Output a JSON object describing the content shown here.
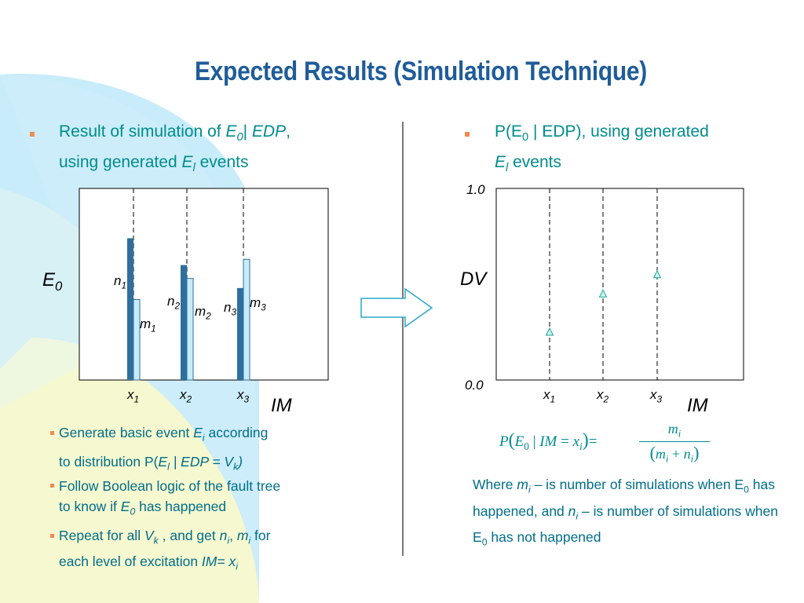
{
  "title": "Expected Results (Simulation Technique)",
  "left_header": {
    "part1": "Result of simulation of ",
    "e0": "E",
    "e0_sub": "0",
    "sep": "| ",
    "edp": "EDP",
    "comma": ",",
    "line2_a": "using generated ",
    "el": "E",
    "el_sub": "l",
    "line2_b": " events"
  },
  "right_header": {
    "line1": "P(E",
    "sub0": "0",
    "line1_b": " | EDP), using generated",
    "el": "E",
    "el_sub": "l",
    "line2_b": " events"
  },
  "left_chart": {
    "ylabel": "E",
    "ylabel_sub": "0",
    "xlabel": "IM",
    "ticks": [
      {
        "base": "x",
        "sub": "1"
      },
      {
        "base": "x",
        "sub": "2"
      },
      {
        "base": "x",
        "sub": "3"
      }
    ],
    "bar_labels": [
      {
        "n": "n",
        "n_sub": "1",
        "m": "m",
        "m_sub": "1"
      },
      {
        "n": "n",
        "n_sub": "2",
        "m": "m",
        "m_sub": "2"
      },
      {
        "n": "n",
        "n_sub": "3",
        "m": "m",
        "m_sub": "3"
      }
    ]
  },
  "right_chart": {
    "ylabel": "DV",
    "xlabel": "IM",
    "y_top": "1.0",
    "y_bottom": "0.0",
    "ticks": [
      {
        "base": "x",
        "sub": "1"
      },
      {
        "base": "x",
        "sub": "2"
      },
      {
        "base": "x",
        "sub": "3"
      }
    ]
  },
  "chart_data": [
    {
      "type": "bar",
      "categories": [
        "x1",
        "x2",
        "x3"
      ],
      "series": [
        {
          "name": "n",
          "values": [
            0.74,
            0.6,
            0.48
          ]
        },
        {
          "name": "m",
          "values": [
            0.42,
            0.53,
            0.63
          ]
        }
      ],
      "xlabel": "IM",
      "ylabel": "E0"
    },
    {
      "type": "scatter",
      "x": [
        "x1",
        "x2",
        "x3"
      ],
      "y": [
        0.25,
        0.45,
        0.55
      ],
      "xlabel": "IM",
      "ylabel": "DV",
      "ylim": [
        0.0,
        1.0
      ]
    }
  ],
  "sub_bullets": [
    {
      "a": "Generate basic event ",
      "i1": "E",
      "i1_sub": "i",
      "b": " according",
      "c": "to distribution P(",
      "i2": "E",
      "i2_sub": "l",
      "d": " | EDP = V",
      "d_sub": "k",
      "e": ")"
    },
    {
      "a": "Follow Boolean logic of the fault tree",
      "b": "to know if ",
      "i1": "E",
      "i1_sub": "0",
      "c": " has happened"
    },
    {
      "a": "Repeat for all ",
      "i1": "V",
      "i1_sub": "k",
      "b": " , and get ",
      "i2": "n",
      "i2_sub": "i",
      "c": ", ",
      "i3": "m",
      "i3_sub": "i",
      "d": " for",
      "e": "each level of excitation ",
      "f": "IM= x",
      "f_sub": "i"
    }
  ],
  "formula": {
    "lhs_p": "P",
    "lhs_e": "E",
    "lhs_e_sub": "0",
    "lhs_bar": " | ",
    "lhs_im": "IM",
    "lhs_eq": " = ",
    "lhs_x": "x",
    "lhs_x_sub": "i",
    "rhs_eq": "=",
    "num": "m",
    "num_sub": "i",
    "den_m": "m",
    "den_m_sub": "i",
    "den_plus": " + ",
    "den_n": "n",
    "den_n_sub": "i"
  },
  "where_text": {
    "a": "Where ",
    "m": "m",
    "m_sub": "i",
    "b": " – is number of simulations when E",
    "b_sub": "0",
    "c": " has happened, and  ",
    "n": "n",
    "n_sub": "i",
    "d": " – is number of simulations when E",
    "d_sub": "0",
    "e": " has not happened"
  },
  "colors": {
    "title": "#1f5c99",
    "teal": "#008c8c",
    "bar_dark": "#2f6f9f",
    "bar_light": "#c8ecfa",
    "bullet": "#f08a50"
  }
}
